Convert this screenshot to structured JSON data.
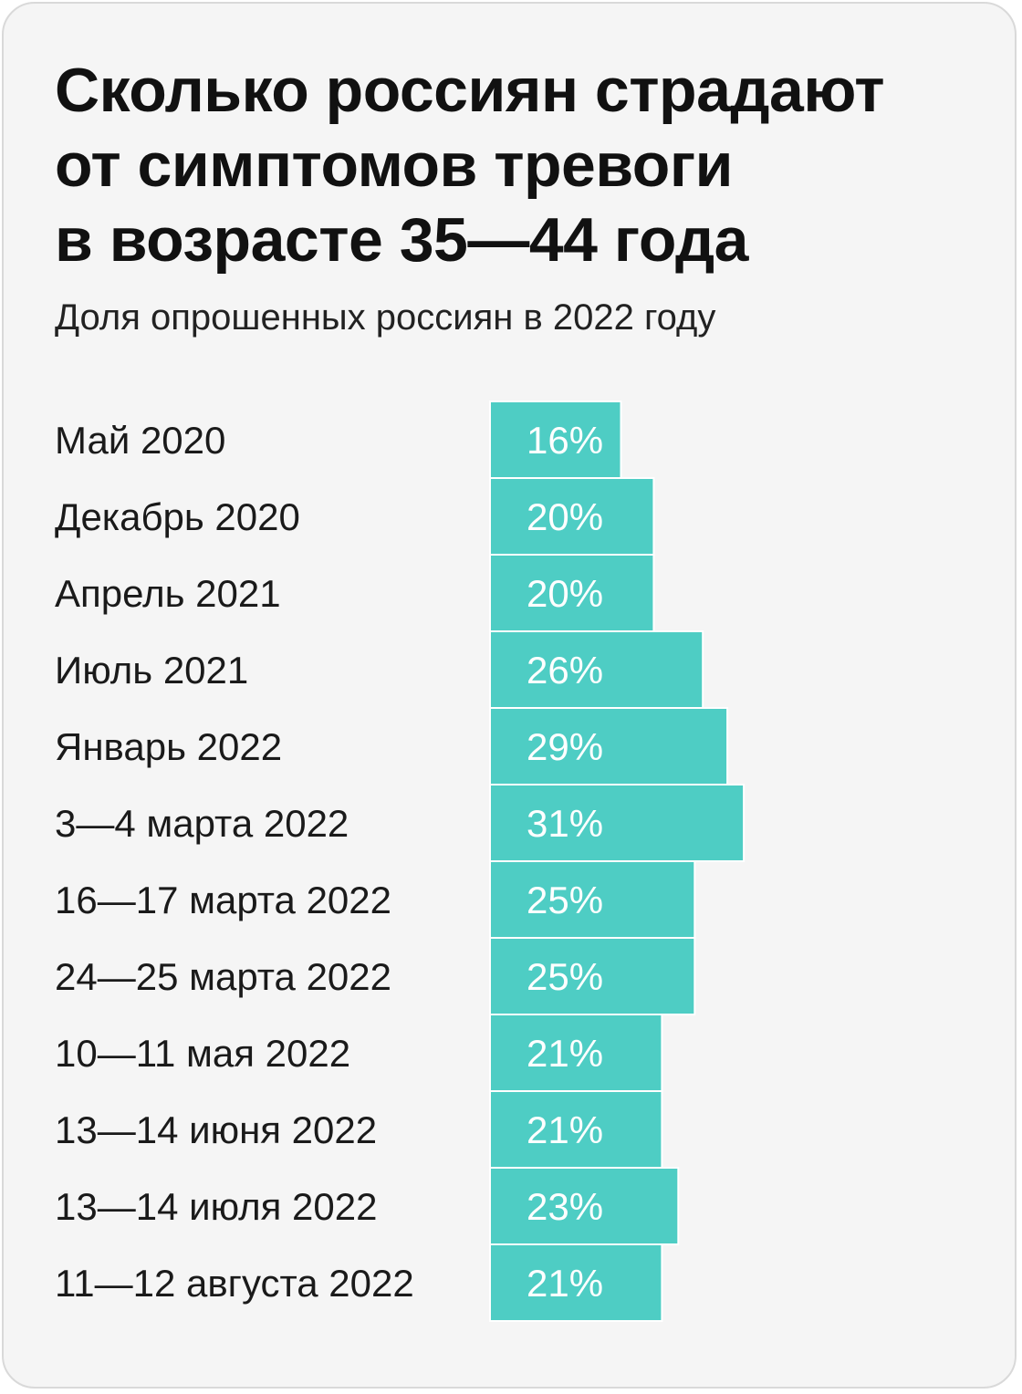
{
  "title_lines": [
    "Сколько россиян страдают",
    "от симптомов тревоги",
    "в возрасте 35—44 года"
  ],
  "subtitle": "Доля опрошенных россиян в 2022 году",
  "colors": {
    "bar": "#4ecdc4",
    "bar_divider": "#ffffff",
    "background": "#f5f5f5"
  },
  "chart_data": {
    "type": "bar",
    "orientation": "horizontal",
    "categories": [
      "Май 2020",
      "Декабрь 2020",
      "Апрель 2021",
      "Июль 2021",
      "Январь 2022",
      "3—4 марта 2022",
      "16—17 марта 2022",
      "24—25 марта 2022",
      "10—11 мая 2022",
      "13—14 июня 2022",
      "13—14 июля 2022",
      "11—12 августа 2022"
    ],
    "values": [
      16,
      20,
      20,
      26,
      29,
      31,
      25,
      25,
      21,
      21,
      23,
      21
    ],
    "value_labels": [
      "16%",
      "20%",
      "20%",
      "26%",
      "29%",
      "31%",
      "25%",
      "25%",
      "21%",
      "21%",
      "23%",
      "21%"
    ],
    "unit": "%",
    "xlim": [
      0,
      31
    ],
    "grid": false,
    "legend": "none"
  }
}
